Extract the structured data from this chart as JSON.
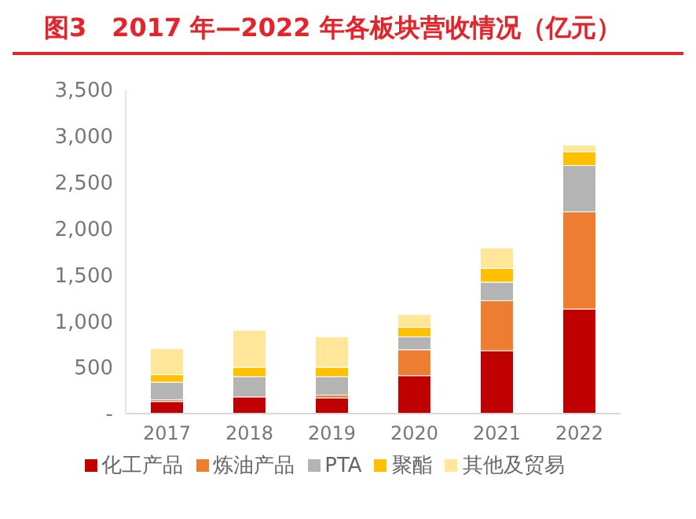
{
  "chart_data": {
    "type": "bar",
    "title": "图3　2017 年—2022 年各板块营收情况（亿元）",
    "stacked": true,
    "categories": [
      "2017",
      "2018",
      "2019",
      "2020",
      "2021",
      "2022"
    ],
    "series": [
      {
        "name": "化工产品",
        "color": "#c00000",
        "values": [
          130,
          180,
          170,
          410,
          680,
          1130
        ]
      },
      {
        "name": "炼油产品",
        "color": "#ed7d31",
        "values": [
          20,
          null,
          30,
          280,
          540,
          1050
        ]
      },
      {
        "name": "PTA",
        "color": "#b4b4b4",
        "values": [
          190,
          220,
          200,
          140,
          200,
          500
        ]
      },
      {
        "name": "聚酯",
        "color": "#ffc000",
        "values": [
          80,
          100,
          100,
          100,
          150,
          150
        ]
      },
      {
        "name": "其他及贸易",
        "color": "#ffe699",
        "values": [
          280,
          400,
          330,
          140,
          220,
          70
        ]
      }
    ],
    "ylim": [
      0,
      3500
    ],
    "yticks": [
      {
        "value": 0,
        "label": "-"
      },
      500,
      {
        "value": 1000,
        "label": "1,000"
      },
      {
        "value": 1500,
        "label": "1,500"
      },
      {
        "value": 2000,
        "label": "2,000"
      },
      {
        "value": 2500,
        "label": "2,500"
      },
      {
        "value": 3000,
        "label": "3,000"
      },
      {
        "value": 3500,
        "label": "3,500"
      }
    ],
    "grid": false,
    "legend": "bottom"
  }
}
